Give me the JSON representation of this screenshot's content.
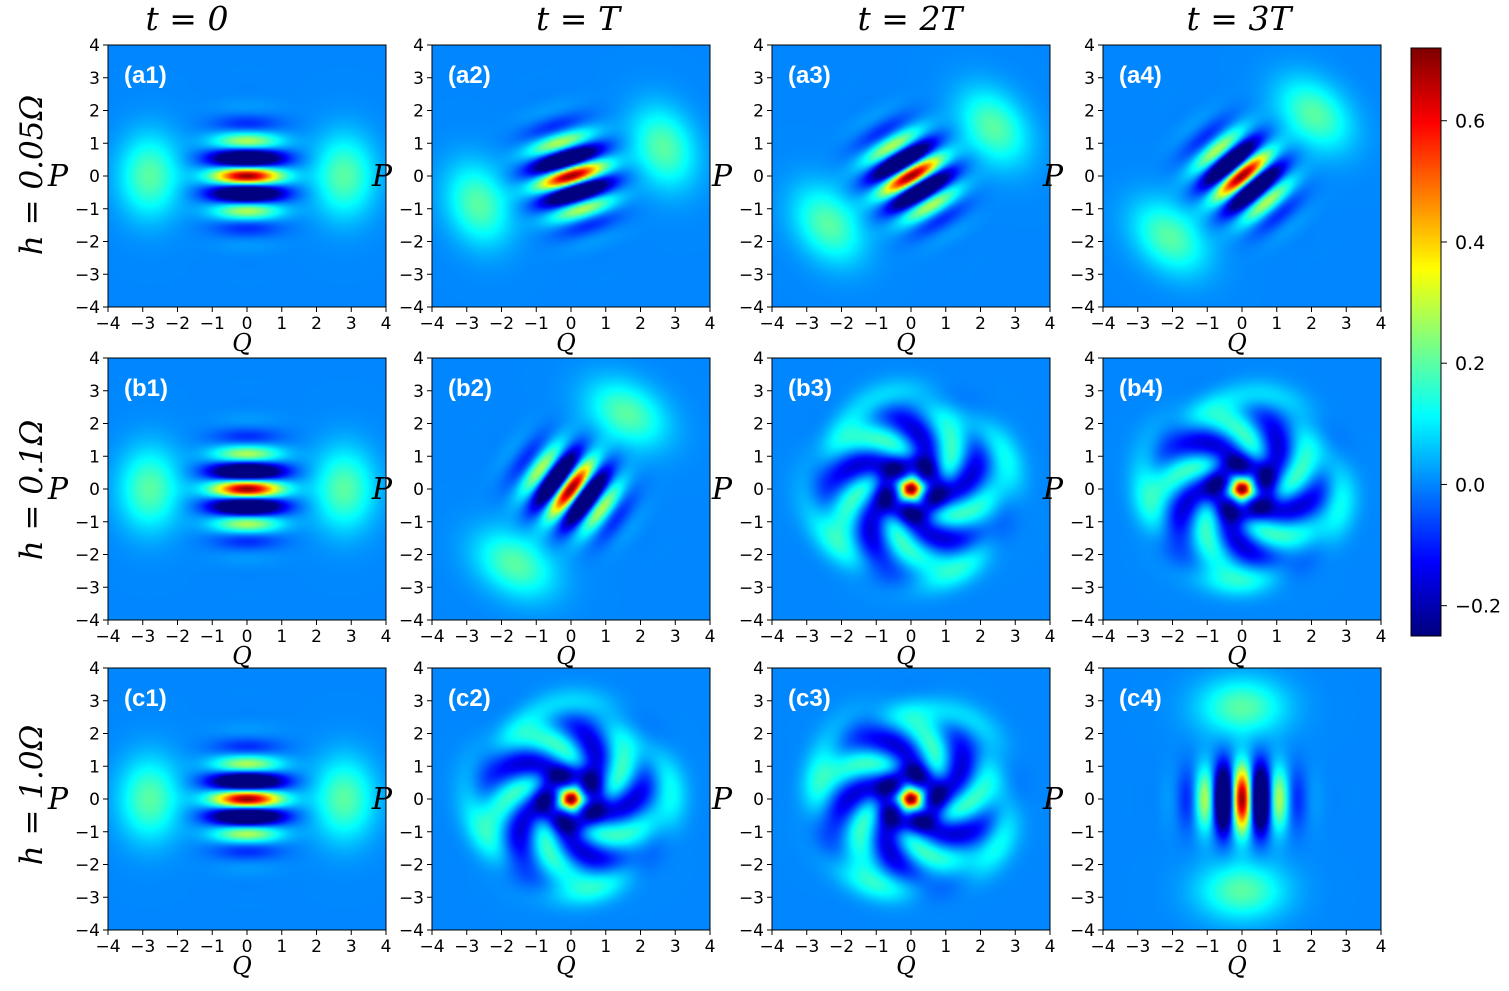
{
  "column_titles": [
    "t = 0",
    "t = T",
    "t = 2T",
    "t = 3T"
  ],
  "row_titles": [
    "h = 0.05Ω",
    "h = 0.1Ω",
    "h = 1.0Ω"
  ],
  "colorbar": {
    "ticks": [
      "0.6",
      "0.4",
      "0.2",
      "0.0",
      "−0.2"
    ],
    "tick_values": [
      0.6,
      0.4,
      0.2,
      0.0,
      -0.2
    ],
    "range": [
      -0.25,
      0.72
    ],
    "colormap": "jet"
  },
  "chart_data": {
    "type": "heatmap",
    "xlabel": "Q",
    "ylabel": "P",
    "xlim": [
      -4,
      4
    ],
    "ylim": [
      -4,
      4
    ],
    "xticks": [
      "−4",
      "−3",
      "−2",
      "−1",
      "0",
      "1",
      "2",
      "3",
      "4"
    ],
    "yticks": [
      "4",
      "3",
      "2",
      "1",
      "0",
      "−1",
      "−2",
      "−3",
      "−4"
    ],
    "panels": [
      {
        "label": "(a1)",
        "row": 0,
        "col": 0,
        "pattern": "cat",
        "rotation_deg": 0
      },
      {
        "label": "(a2)",
        "row": 0,
        "col": 1,
        "pattern": "cat",
        "rotation_deg": 18
      },
      {
        "label": "(a3)",
        "row": 0,
        "col": 2,
        "pattern": "cat",
        "rotation_deg": 32
      },
      {
        "label": "(a4)",
        "row": 0,
        "col": 3,
        "pattern": "cat",
        "rotation_deg": 42
      },
      {
        "label": "(b1)",
        "row": 1,
        "col": 0,
        "pattern": "cat",
        "rotation_deg": 0
      },
      {
        "label": "(b2)",
        "row": 1,
        "col": 1,
        "pattern": "cat",
        "rotation_deg": 55
      },
      {
        "label": "(b3)",
        "row": 1,
        "col": 2,
        "pattern": "swirl",
        "rotation_deg": 0
      },
      {
        "label": "(b4)",
        "row": 1,
        "col": 3,
        "pattern": "swirl",
        "rotation_deg": 30
      },
      {
        "label": "(c1)",
        "row": 2,
        "col": 0,
        "pattern": "cat",
        "rotation_deg": 0
      },
      {
        "label": "(c2)",
        "row": 2,
        "col": 1,
        "pattern": "swirl",
        "rotation_deg": 15
      },
      {
        "label": "(c3)",
        "row": 2,
        "col": 2,
        "pattern": "swirl",
        "rotation_deg": 50
      },
      {
        "label": "(c4)",
        "row": 2,
        "col": 3,
        "pattern": "cat",
        "rotation_deg": 90
      }
    ]
  }
}
